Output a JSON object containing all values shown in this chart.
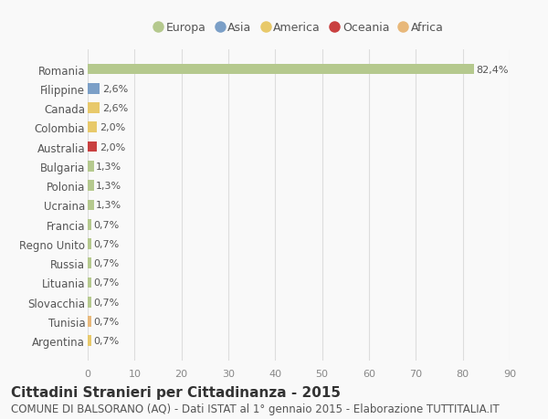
{
  "categories": [
    "Romania",
    "Filippine",
    "Canada",
    "Colombia",
    "Australia",
    "Bulgaria",
    "Polonia",
    "Ucraina",
    "Francia",
    "Regno Unito",
    "Russia",
    "Lituania",
    "Slovacchia",
    "Tunisia",
    "Argentina"
  ],
  "values": [
    82.4,
    2.6,
    2.6,
    2.0,
    2.0,
    1.3,
    1.3,
    1.3,
    0.7,
    0.7,
    0.7,
    0.7,
    0.7,
    0.7,
    0.7
  ],
  "labels": [
    "82,4%",
    "2,6%",
    "2,6%",
    "2,0%",
    "2,0%",
    "1,3%",
    "1,3%",
    "1,3%",
    "0,7%",
    "0,7%",
    "0,7%",
    "0,7%",
    "0,7%",
    "0,7%",
    "0,7%"
  ],
  "continents": [
    "Europa",
    "Asia",
    "America",
    "America",
    "Oceania",
    "Europa",
    "Europa",
    "Europa",
    "Europa",
    "Europa",
    "Europa",
    "Europa",
    "Europa",
    "Africa",
    "America"
  ],
  "continent_colors": {
    "Europa": "#b5c98e",
    "Asia": "#7b9fc7",
    "America": "#e8c96a",
    "Oceania": "#c94040",
    "Africa": "#e8b87a"
  },
  "legend_order": [
    "Europa",
    "Asia",
    "America",
    "Oceania",
    "Africa"
  ],
  "xlim": [
    0,
    90
  ],
  "xticks": [
    0,
    10,
    20,
    30,
    40,
    50,
    60,
    70,
    80,
    90
  ],
  "title": "Cittadini Stranieri per Cittadinanza - 2015",
  "subtitle": "COMUNE DI BALSORANO (AQ) - Dati ISTAT al 1° gennaio 2015 - Elaborazione TUTTITALIA.IT",
  "background_color": "#f9f9f9",
  "grid_color": "#dddddd",
  "bar_height": 0.55,
  "title_fontsize": 11,
  "subtitle_fontsize": 8.5,
  "label_fontsize": 8,
  "ytick_fontsize": 8.5,
  "xtick_fontsize": 8
}
